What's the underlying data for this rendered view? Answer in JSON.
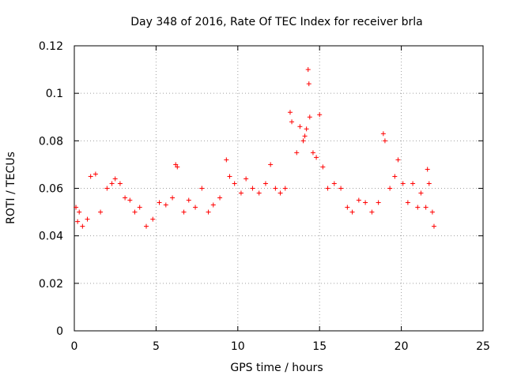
{
  "chart_data": {
    "type": "scatter",
    "title": "Day 348 of 2016, Rate Of TEC Index for receiver brla",
    "xlabel": "GPS time / hours",
    "ylabel": "ROTI / TECUs",
    "xlim": [
      0,
      25
    ],
    "ylim": [
      0,
      0.12
    ],
    "xticks": [
      0,
      5,
      10,
      15,
      20,
      25
    ],
    "xtick_labels": [
      "0",
      "5",
      "10",
      "15",
      "20",
      "25"
    ],
    "yticks": [
      0,
      0.02,
      0.04,
      0.06,
      0.08,
      0.1,
      0.12
    ],
    "ytick_labels": [
      "0",
      "0.02",
      "0.04",
      "0.06",
      "0.08",
      "0.1",
      "0.12"
    ],
    "grid": true,
    "marker": "plus",
    "color": "#ff0000",
    "series": [
      {
        "name": "",
        "points": [
          [
            0.1,
            0.052
          ],
          [
            0.2,
            0.046
          ],
          [
            0.3,
            0.05
          ],
          [
            0.5,
            0.044
          ],
          [
            0.8,
            0.047
          ],
          [
            1.0,
            0.065
          ],
          [
            1.3,
            0.066
          ],
          [
            1.6,
            0.05
          ],
          [
            2.0,
            0.06
          ],
          [
            2.3,
            0.062
          ],
          [
            2.5,
            0.064
          ],
          [
            2.8,
            0.062
          ],
          [
            3.1,
            0.056
          ],
          [
            3.4,
            0.055
          ],
          [
            3.7,
            0.05
          ],
          [
            4.0,
            0.052
          ],
          [
            4.4,
            0.044
          ],
          [
            4.8,
            0.047
          ],
          [
            5.2,
            0.054
          ],
          [
            5.6,
            0.053
          ],
          [
            6.0,
            0.056
          ],
          [
            6.2,
            0.07
          ],
          [
            6.3,
            0.069
          ],
          [
            6.7,
            0.05
          ],
          [
            7.0,
            0.055
          ],
          [
            7.4,
            0.052
          ],
          [
            7.8,
            0.06
          ],
          [
            8.2,
            0.05
          ],
          [
            8.5,
            0.053
          ],
          [
            8.9,
            0.056
          ],
          [
            9.3,
            0.072
          ],
          [
            9.5,
            0.065
          ],
          [
            9.8,
            0.062
          ],
          [
            10.2,
            0.058
          ],
          [
            10.5,
            0.064
          ],
          [
            10.9,
            0.06
          ],
          [
            11.3,
            0.058
          ],
          [
            11.7,
            0.062
          ],
          [
            12.0,
            0.07
          ],
          [
            12.3,
            0.06
          ],
          [
            12.6,
            0.058
          ],
          [
            12.9,
            0.06
          ],
          [
            13.2,
            0.092
          ],
          [
            13.3,
            0.088
          ],
          [
            13.6,
            0.075
          ],
          [
            13.8,
            0.086
          ],
          [
            14.0,
            0.08
          ],
          [
            14.1,
            0.082
          ],
          [
            14.2,
            0.085
          ],
          [
            14.3,
            0.11
          ],
          [
            14.35,
            0.104
          ],
          [
            14.4,
            0.09
          ],
          [
            14.6,
            0.075
          ],
          [
            14.8,
            0.073
          ],
          [
            15.0,
            0.091
          ],
          [
            15.2,
            0.069
          ],
          [
            15.5,
            0.06
          ],
          [
            15.9,
            0.062
          ],
          [
            16.3,
            0.06
          ],
          [
            16.7,
            0.052
          ],
          [
            17.0,
            0.05
          ],
          [
            17.4,
            0.055
          ],
          [
            17.8,
            0.054
          ],
          [
            18.2,
            0.05
          ],
          [
            18.6,
            0.054
          ],
          [
            18.9,
            0.083
          ],
          [
            19.0,
            0.08
          ],
          [
            19.3,
            0.06
          ],
          [
            19.6,
            0.065
          ],
          [
            19.8,
            0.072
          ],
          [
            20.1,
            0.062
          ],
          [
            20.4,
            0.054
          ],
          [
            20.7,
            0.062
          ],
          [
            21.0,
            0.052
          ],
          [
            21.2,
            0.058
          ],
          [
            21.5,
            0.052
          ],
          [
            21.6,
            0.068
          ],
          [
            21.7,
            0.062
          ],
          [
            21.9,
            0.05
          ],
          [
            22.0,
            0.044
          ]
        ]
      }
    ]
  }
}
